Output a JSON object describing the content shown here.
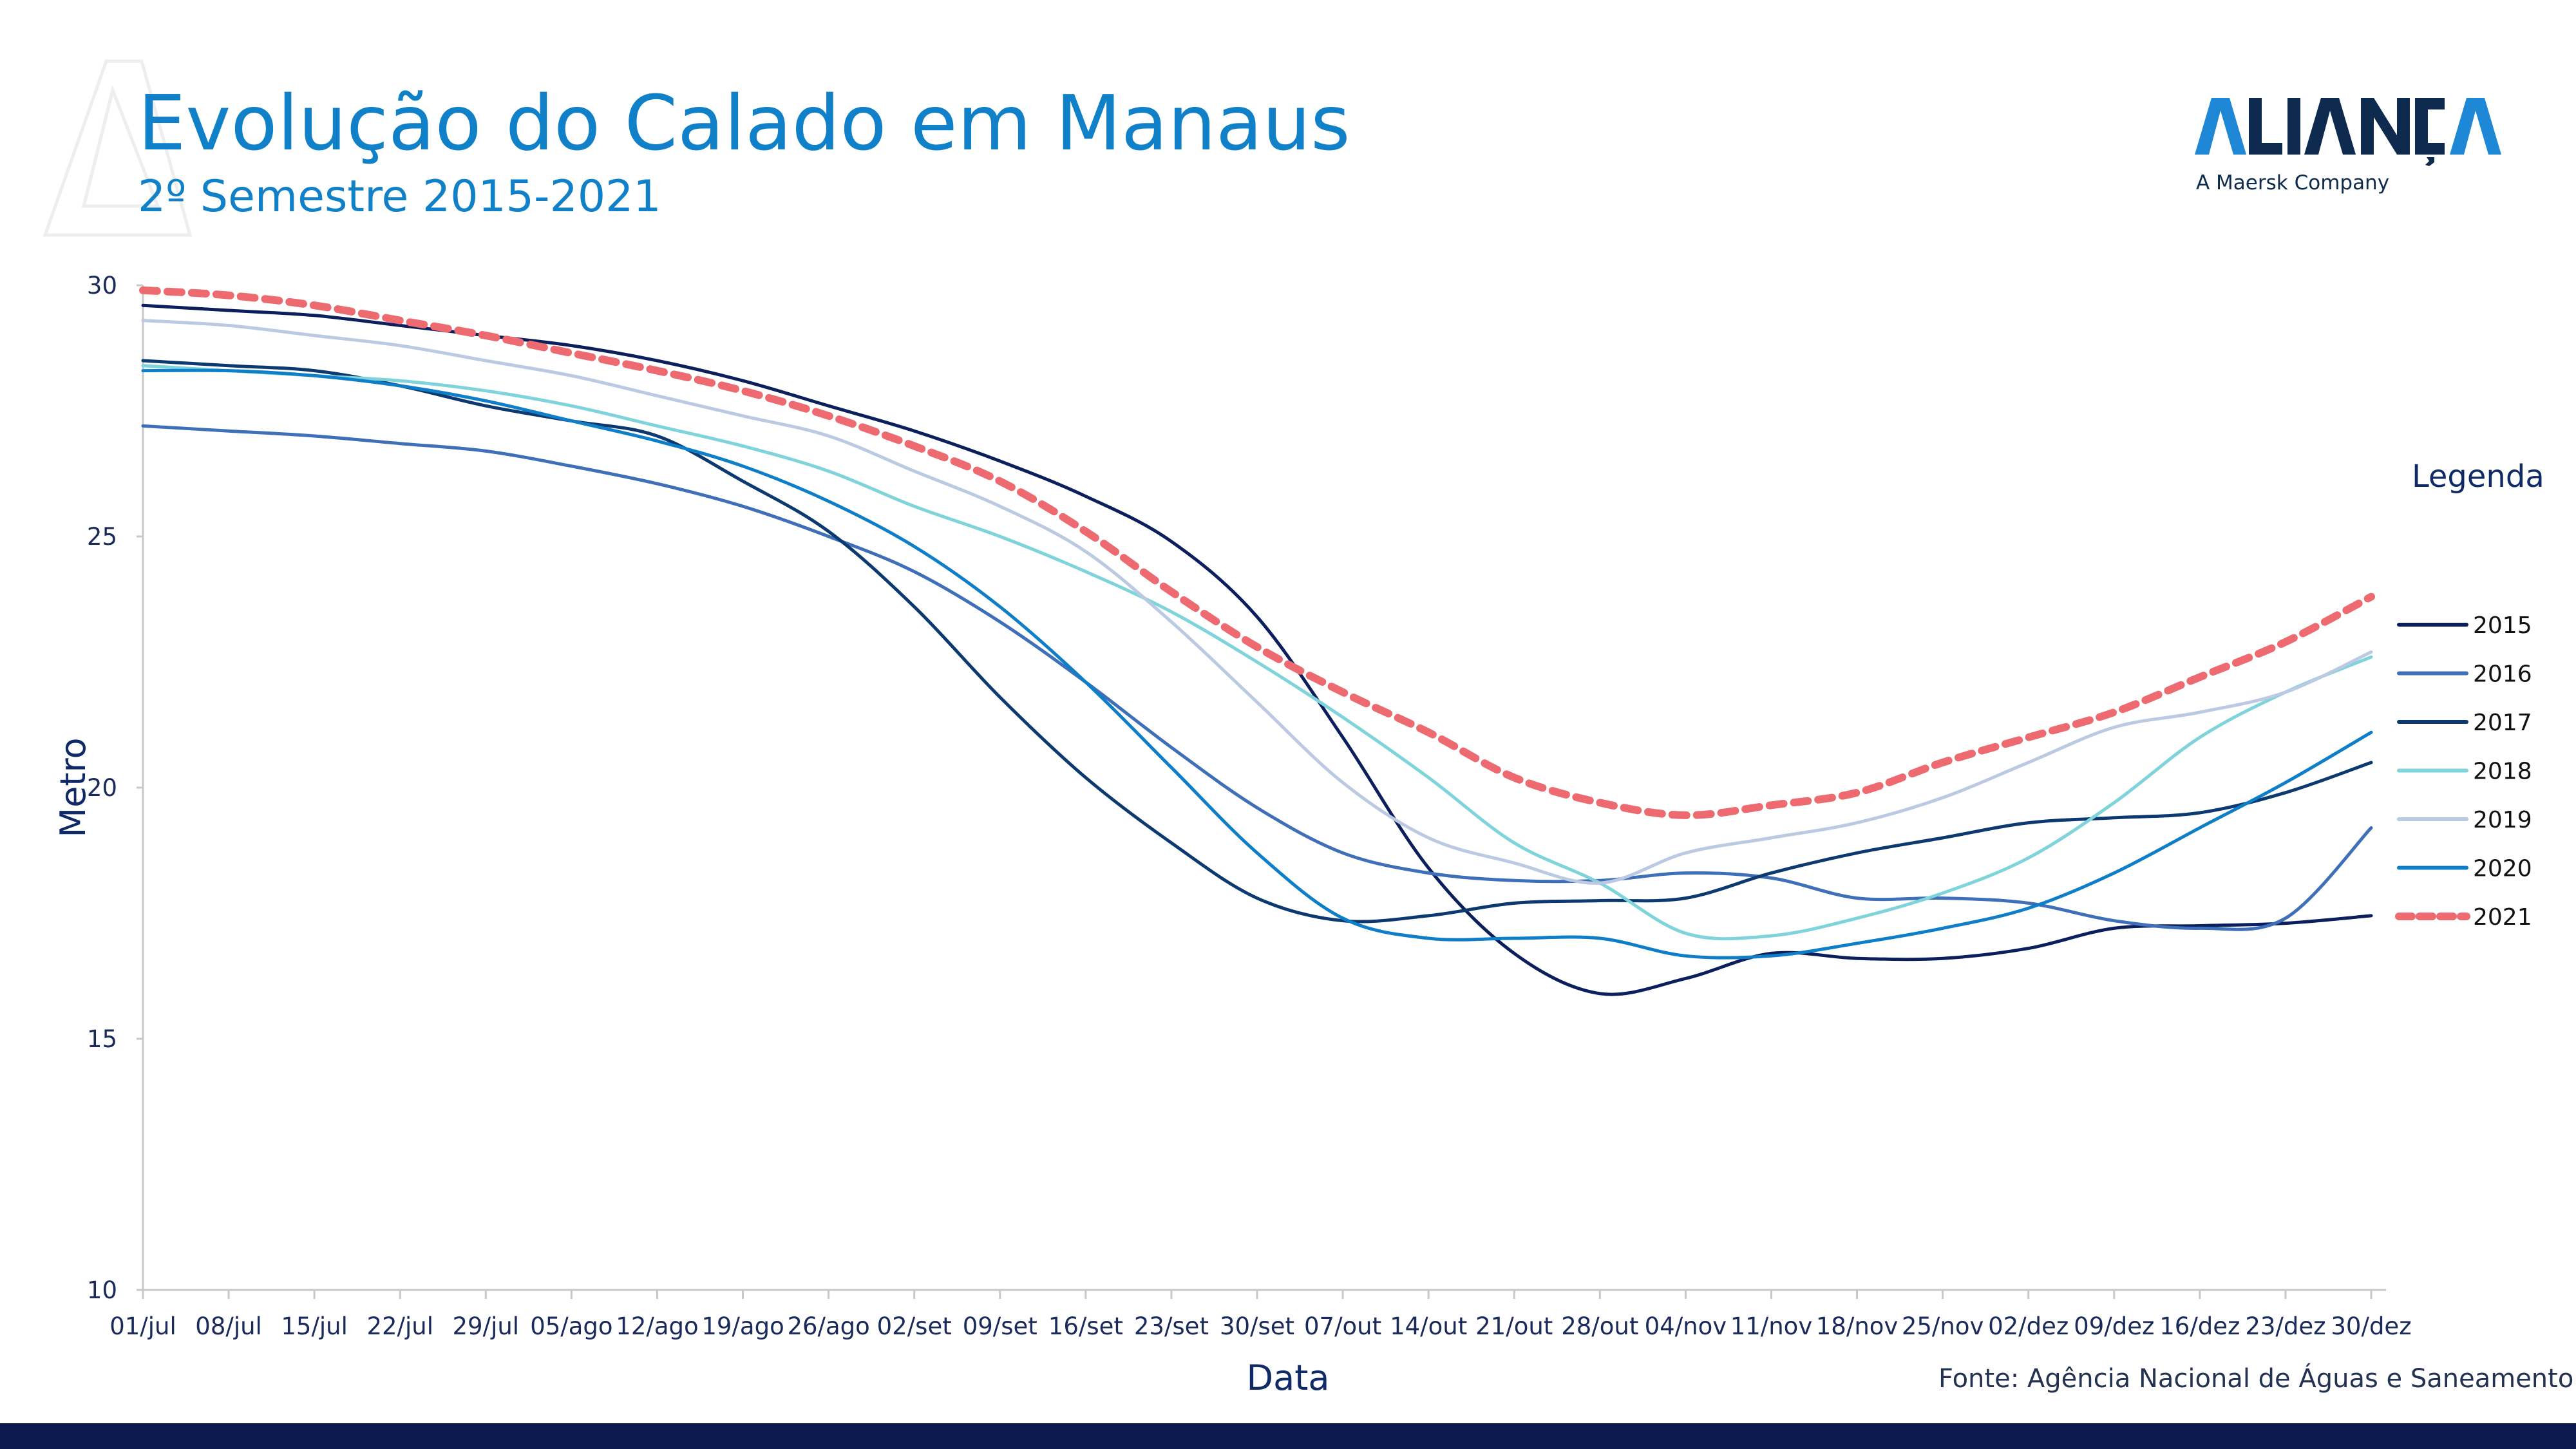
{
  "page": {
    "title": "Evolução do Calado em Manaus",
    "subtitle": "2º Semestre 2015-2021",
    "logo_text": "ALIANÇA",
    "logo_tagline": "A Maersk Company",
    "legend_title": "Legenda",
    "source": "Fonte: Agência Nacional de Águas e Saneamento Básico",
    "colors": {
      "title": "#1080c8",
      "footer": "#0b1b4f",
      "logo": "#0e2b4f",
      "logo_accent": "#1e88d6"
    }
  },
  "chart_data": {
    "type": "line",
    "title": "Evolução do Calado em Manaus",
    "subtitle": "2º Semestre 2015-2021",
    "xlabel": "Data",
    "ylabel": "Metro",
    "ylim": [
      10,
      30
    ],
    "yticks": [
      10,
      15,
      20,
      25,
      30
    ],
    "categories": [
      "01/jul",
      "08/jul",
      "15/jul",
      "22/jul",
      "29/jul",
      "05/ago",
      "12/ago",
      "19/ago",
      "26/ago",
      "02/set",
      "09/set",
      "16/set",
      "23/set",
      "30/set",
      "07/out",
      "14/out",
      "21/out",
      "28/out",
      "04/nov",
      "11/nov",
      "18/nov",
      "25/nov",
      "02/dez",
      "09/dez",
      "16/dez",
      "23/dez",
      "30/dez"
    ],
    "legend_position": "right",
    "grid": false,
    "series": [
      {
        "name": "2015",
        "color": "#0b1f5c",
        "dashed": false,
        "values": [
          29.6,
          29.5,
          29.4,
          29.2,
          29.0,
          28.8,
          28.5,
          28.1,
          27.6,
          27.1,
          26.5,
          25.8,
          24.9,
          23.4,
          21.0,
          18.4,
          16.7,
          15.9,
          16.2,
          16.7,
          16.6,
          16.6,
          16.8,
          17.2,
          17.25,
          17.3,
          17.45
        ]
      },
      {
        "name": "2016",
        "color": "#3e6fb8",
        "dashed": false,
        "values": [
          27.2,
          27.1,
          27.0,
          26.85,
          26.7,
          26.4,
          26.05,
          25.6,
          25.0,
          24.3,
          23.3,
          22.1,
          20.8,
          19.6,
          18.7,
          18.3,
          18.15,
          18.15,
          18.3,
          18.2,
          17.8,
          17.8,
          17.7,
          17.35,
          17.2,
          17.4,
          19.2
        ]
      },
      {
        "name": "2017",
        "color": "#0c3a70",
        "dashed": false,
        "values": [
          28.5,
          28.4,
          28.3,
          28.0,
          27.6,
          27.3,
          27.0,
          26.1,
          25.1,
          23.6,
          21.8,
          20.2,
          18.9,
          17.8,
          17.35,
          17.45,
          17.7,
          17.75,
          17.8,
          18.3,
          18.7,
          19.0,
          19.3,
          19.4,
          19.5,
          19.9,
          20.5
        ]
      },
      {
        "name": "2018",
        "color": "#7fd3db",
        "dashed": false,
        "values": [
          28.4,
          28.3,
          28.2,
          28.1,
          27.9,
          27.6,
          27.2,
          26.8,
          26.3,
          25.6,
          25.0,
          24.3,
          23.5,
          22.5,
          21.4,
          20.2,
          18.9,
          18.1,
          17.1,
          17.05,
          17.4,
          17.9,
          18.6,
          19.7,
          21.0,
          21.9,
          22.6
        ]
      },
      {
        "name": "2019",
        "color": "#bcc9e3",
        "dashed": false,
        "values": [
          29.3,
          29.2,
          29.0,
          28.8,
          28.5,
          28.2,
          27.8,
          27.4,
          27.0,
          26.3,
          25.6,
          24.7,
          23.3,
          21.7,
          20.1,
          19.0,
          18.5,
          18.1,
          18.7,
          19.0,
          19.3,
          19.8,
          20.5,
          21.2,
          21.5,
          21.9,
          22.7
        ]
      },
      {
        "name": "2020",
        "color": "#0f7ec8",
        "dashed": false,
        "values": [
          28.3,
          28.3,
          28.2,
          28.0,
          27.7,
          27.3,
          26.9,
          26.4,
          25.7,
          24.8,
          23.6,
          22.1,
          20.4,
          18.7,
          17.4,
          17.0,
          17.0,
          17.0,
          16.65,
          16.65,
          16.9,
          17.2,
          17.6,
          18.3,
          19.2,
          20.1,
          21.1
        ]
      },
      {
        "name": "2021",
        "color": "#ec6a70",
        "dashed": true,
        "values": [
          29.9,
          29.8,
          29.6,
          29.3,
          29.0,
          28.65,
          28.3,
          27.9,
          27.4,
          26.8,
          26.1,
          25.1,
          23.9,
          22.8,
          21.9,
          21.1,
          20.2,
          19.7,
          19.45,
          19.65,
          19.9,
          20.5,
          21.0,
          21.5,
          22.2,
          22.9,
          23.8
        ]
      }
    ]
  }
}
